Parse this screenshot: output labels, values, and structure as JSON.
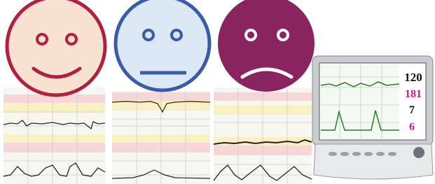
{
  "monitor": {
    "readings": [
      120,
      181,
      7,
      6
    ]
  }
}
